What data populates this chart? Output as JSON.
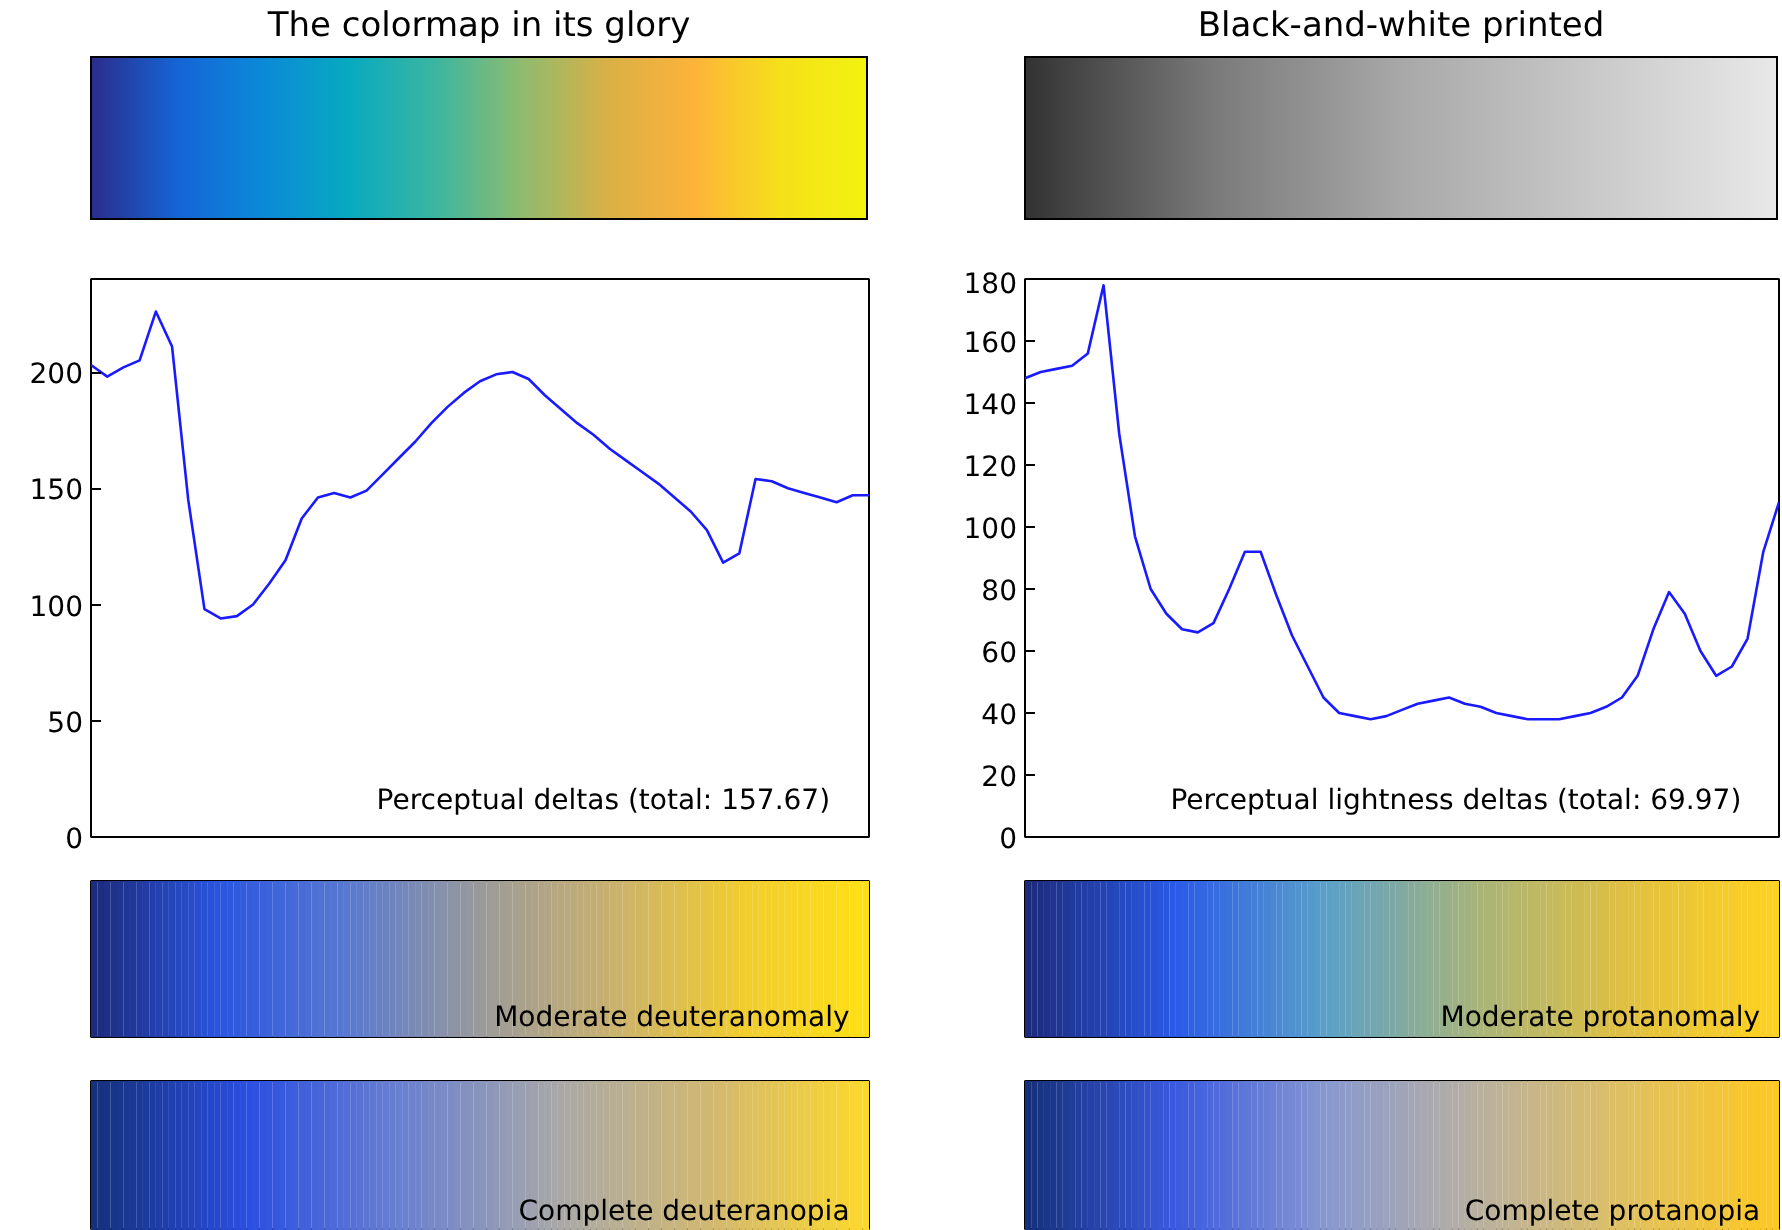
{
  "chart_data": [
    {
      "type": "other",
      "title": "The colormap in its glory",
      "colors": [
        "#2b2d8c",
        "#1565d6",
        "#0b8ad8",
        "#08aac0",
        "#3cb6a0",
        "#8fbb6e",
        "#d9b046",
        "#fdb33a",
        "#f5e01a",
        "#f2f20f"
      ]
    },
    {
      "type": "other",
      "title": "Black-and-white printed",
      "colors": [
        "#333333",
        "#7a7a7a",
        "#a8a8a8",
        "#c8c8c8",
        "#e8e8e8"
      ]
    },
    {
      "type": "line",
      "categories": [
        null,
        null,
        null,
        null,
        null,
        null,
        null,
        null,
        null,
        null,
        null,
        null,
        null,
        null,
        null,
        null,
        null,
        null,
        null,
        null,
        null,
        null,
        null,
        null,
        null,
        null,
        null,
        null,
        null,
        null,
        null,
        null,
        null,
        null,
        null,
        null,
        null,
        null,
        null,
        null,
        null,
        null,
        null,
        null,
        null,
        null,
        null,
        null,
        null
      ],
      "values": [
        203,
        198,
        202,
        205,
        226,
        211,
        145,
        98,
        94,
        95,
        100,
        109,
        119,
        137,
        146,
        148,
        146,
        149,
        156,
        163,
        170,
        178,
        185,
        191,
        196,
        199,
        200,
        197,
        190,
        184,
        178,
        173,
        167,
        162,
        157,
        152,
        146,
        140,
        132,
        118,
        122,
        154,
        153,
        150,
        148,
        146,
        144,
        147,
        147
      ],
      "color": "#1a1aff",
      "ylim": [
        0,
        240
      ],
      "yticks": [
        0,
        50,
        100,
        150,
        200
      ],
      "tick_labels": "y",
      "annotations": [
        "Perceptual deltas (total: 157.67)"
      ]
    },
    {
      "type": "line",
      "categories": [
        null,
        null,
        null,
        null,
        null,
        null,
        null,
        null,
        null,
        null,
        null,
        null,
        null,
        null,
        null,
        null,
        null,
        null,
        null,
        null,
        null,
        null,
        null,
        null,
        null,
        null,
        null,
        null,
        null,
        null,
        null,
        null,
        null,
        null,
        null,
        null,
        null,
        null,
        null,
        null,
        null,
        null,
        null,
        null,
        null,
        null,
        null,
        null,
        null
      ],
      "values": [
        148,
        150,
        151,
        152,
        156,
        178,
        130,
        97,
        80,
        72,
        67,
        66,
        69,
        80,
        92,
        92,
        78,
        65,
        55,
        45,
        40,
        39,
        38,
        39,
        41,
        43,
        44,
        45,
        43,
        42,
        40,
        39,
        38,
        38,
        38,
        39,
        40,
        42,
        45,
        52,
        67,
        79,
        72,
        60,
        52,
        55,
        64,
        92,
        108
      ],
      "color": "#1a1aff",
      "ylim": [
        0,
        180
      ],
      "yticks": [
        0,
        20,
        40,
        60,
        80,
        100,
        120,
        140,
        160,
        180
      ],
      "tick_labels": "y",
      "annotations": [
        "Perceptual lightness deltas (total: 69.97)"
      ]
    },
    {
      "type": "other",
      "colors": [
        "#1c2a7a",
        "#2a55e0",
        "#5a7ad0",
        "#9a9a9a",
        "#c8b070",
        "#f0cc30",
        "#ffe015"
      ],
      "annotations": [
        "Moderate deuteranomaly"
      ]
    },
    {
      "type": "other",
      "colors": [
        "#1c2a7a",
        "#2a5ae8",
        "#5aa0c8",
        "#a8b47a",
        "#e0c040",
        "#ffd21e"
      ],
      "annotations": [
        "Moderate protanomaly"
      ]
    },
    {
      "type": "other",
      "colors": [
        "#15307a",
        "#2a4ee0",
        "#6a80d0",
        "#a8a8a8",
        "#d2b870",
        "#fdd92a"
      ],
      "annotations": [
        "Complete deuteranopia"
      ]
    },
    {
      "type": "other",
      "colors": [
        "#15307a",
        "#3a5ae0",
        "#8898d0",
        "#b8b0a0",
        "#e0c060",
        "#ffc820"
      ],
      "annotations": [
        "Complete protanopia"
      ]
    }
  ]
}
